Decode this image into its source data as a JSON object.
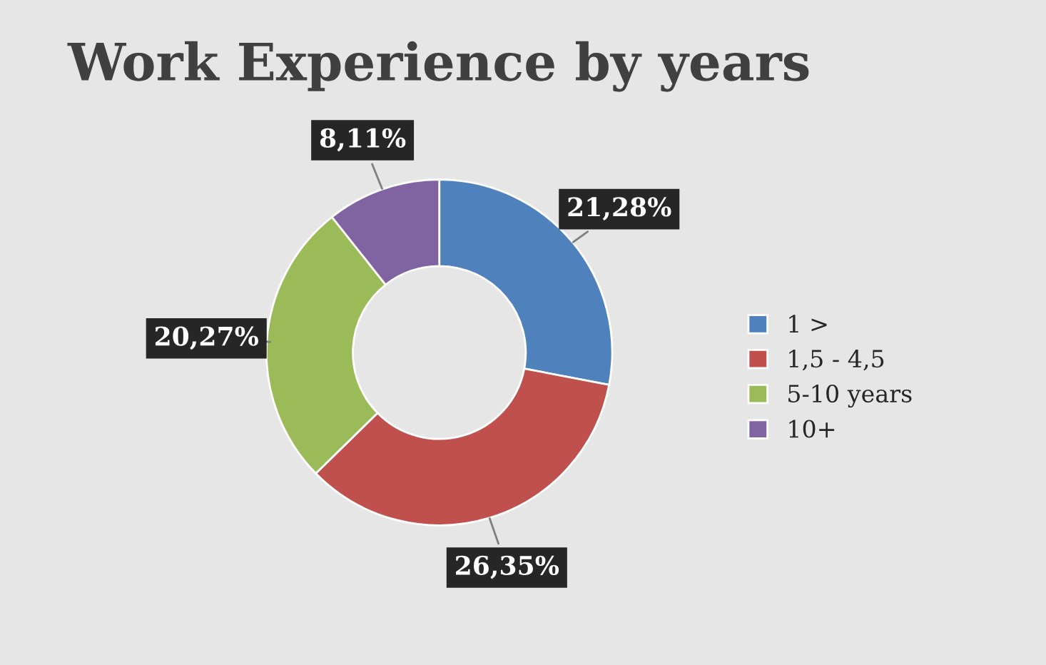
{
  "chart_data": {
    "type": "donut",
    "title": "Work Experience by years",
    "categories": [
      "1 >",
      "1,5 - 4,5",
      "5-10 years",
      "10+"
    ],
    "values": [
      21.28,
      26.35,
      20.27,
      8.11
    ],
    "value_labels": [
      "21,28%",
      "26,35%",
      "20,27%",
      "8,11%"
    ],
    "colors": [
      "#4f81bd",
      "#c0504d",
      "#9bbb59",
      "#8064a2"
    ],
    "legend": "right"
  }
}
